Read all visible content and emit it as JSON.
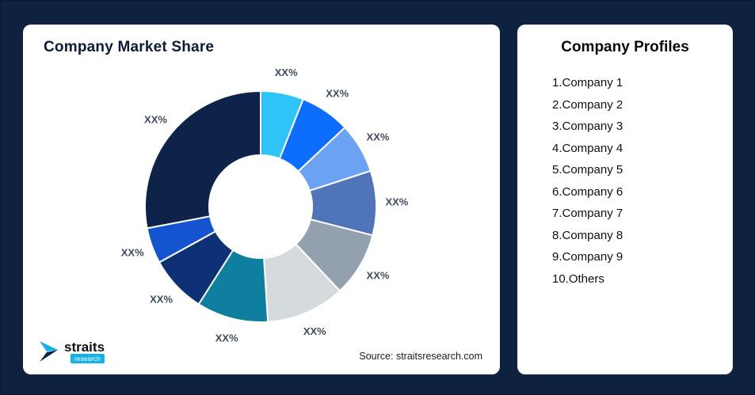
{
  "chart_card": {
    "title": "Company Market Share",
    "source": "Source: straitsresearch.com"
  },
  "logo": {
    "name": "straits",
    "sub": "research"
  },
  "profiles": {
    "title": "Company Profiles",
    "items": [
      "1.Company 1",
      "2.Company 2",
      "3.Company 3",
      "4.Company 4",
      "5.Company 5",
      "6.Company 6",
      "7.Company 7",
      "8.Company 8",
      "9.Company 9",
      "10.Others"
    ]
  },
  "chart_data": {
    "type": "pie",
    "subtype": "donut",
    "title": "Company Market Share",
    "start_angle_deg": -90,
    "direction": "clockwise",
    "legend_position": "none",
    "categories": [
      "Company 1",
      "Company 2",
      "Company 3",
      "Company 4",
      "Company 5",
      "Company 6",
      "Company 7",
      "Company 8",
      "Company 9",
      "Others"
    ],
    "values": [
      6,
      7,
      7,
      9,
      9,
      11,
      10,
      8,
      5,
      28
    ],
    "labels": [
      "XX%",
      "XX%",
      "XX%",
      "XX%",
      "XX%",
      "XX%",
      "XX%",
      "XX%",
      "XX%",
      "XX%"
    ],
    "colors": [
      "#2fc4f8",
      "#0d6efd",
      "#6ba3f2",
      "#4f74b8",
      "#93a0ad",
      "#d5dade",
      "#0e7f9e",
      "#0e3175",
      "#1554d0",
      "#0d2349"
    ],
    "stroke_color": "#ffffff",
    "label_color": "#3f4c5e"
  }
}
